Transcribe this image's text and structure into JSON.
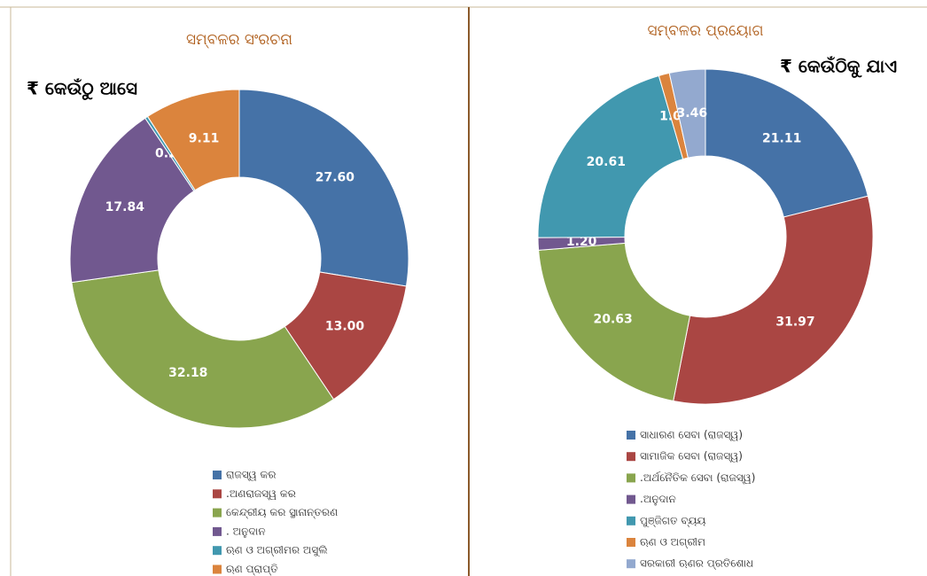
{
  "chart_data": [
    {
      "type": "donut",
      "title": "ସମ୍ବଳର ସଂରଚନା",
      "subtitle": "₹ କେଉଁଠୁ ଆସେ",
      "categories": [
        "ରାଜସ୍ୱ କର",
        ".ଅଣରାଜସ୍ୱ କର",
        "କେନ୍ଦ୍ରୀୟ କର ସ୍ଥାନାନ୍ତରଣ",
        ". ଅନୁଦାନ",
        "ଋଣ ଓ ଅଗ୍ରୀମର ଅସୁଲି",
        "ଋଣ ପ୍ରାପ୍ତି"
      ],
      "values": [
        27.6,
        13,
        32.18,
        17.84,
        0.28,
        9.11
      ],
      "value_labels": [
        "27.60",
        "13.00",
        "32.18",
        "17.84",
        "0.28",
        "9.11"
      ],
      "colors": [
        "#4572a7",
        "#aa4643",
        "#89a54e",
        "#71588f",
        "#4198af",
        "#db843d"
      ]
    },
    {
      "type": "donut",
      "title": "ସମ୍ବଳର ପ୍ରୟୋଗ",
      "subtitle": "₹ କେଉଁଠିକୁ ଯାଏ",
      "categories": [
        "ସାଧାରଣ ସେବା (ରାଜସ୍ୱ)",
        "ସାମାଜିକ ସେବା (ରାଜସ୍ୱ)",
        ".ଅର୍ଥନୈତିକ ସେବା (ରାଜସ୍ୱ)",
        ".ଅନୁଦାନ",
        "ପୁଞ୍ଜିଗତ ବ୍ୟୟ",
        "ଋଣ ଓ ଅଗ୍ରୀମ",
        "ସରକାରୀ ଋଣର ପ୍ରତିଶୋଧ"
      ],
      "values": [
        21.11,
        31.97,
        20.63,
        1.2,
        20.61,
        1.03,
        3.46
      ],
      "value_labels": [
        "21.11",
        "31.97",
        "20.63",
        "1.20",
        "20.61",
        "1.03",
        "3.46"
      ],
      "colors": [
        "#4572a7",
        "#aa4643",
        "#89a54e",
        "#71588f",
        "#4198af",
        "#db843d",
        "#93a9cf"
      ]
    }
  ]
}
